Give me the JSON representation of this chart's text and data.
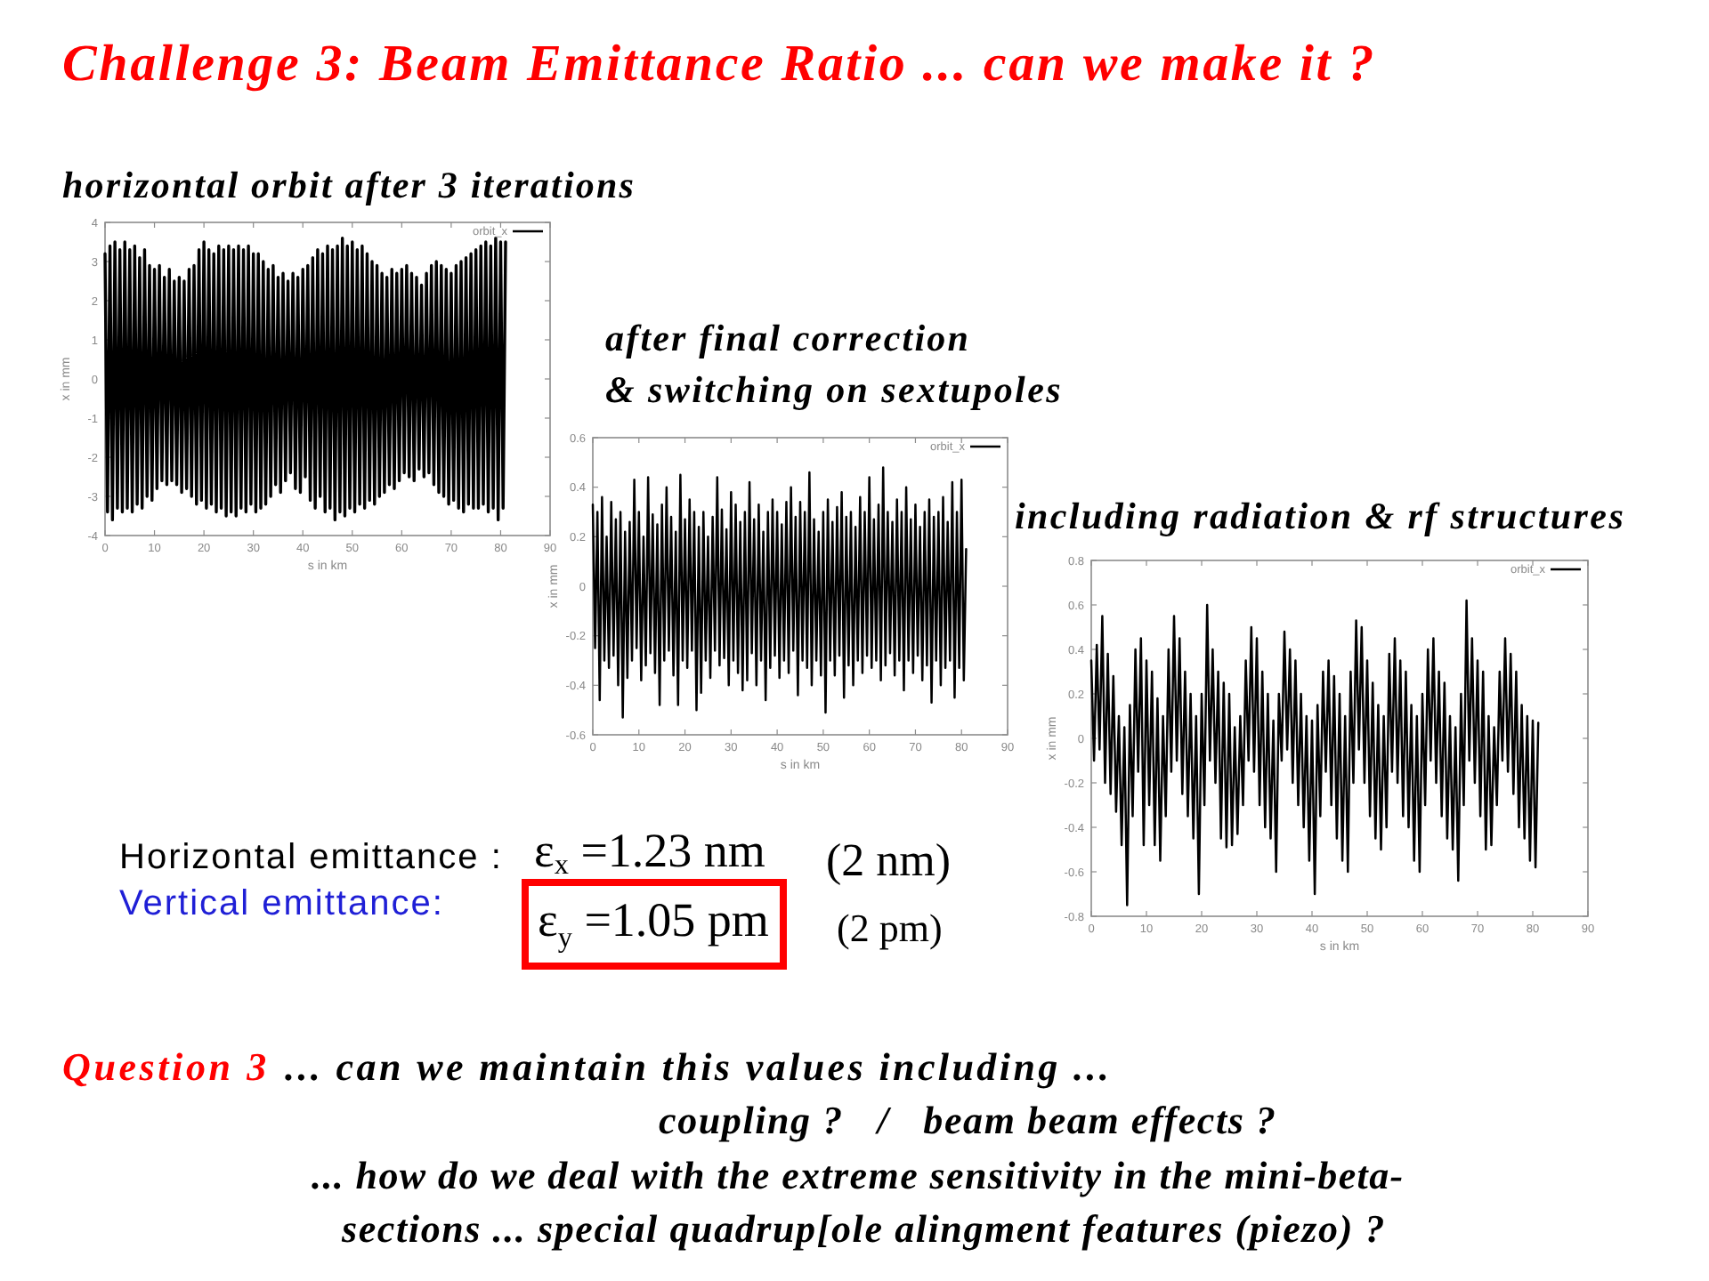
{
  "chart_data": [
    {
      "type": "line",
      "title": "Challenge 3: Beam Emittance Ratio ... can we make it ?",
      "subtitle": "horizontal orbit after 3 iterations",
      "xlabel": "s in km",
      "ylabel": "x in mm",
      "xlim": [
        0,
        90
      ],
      "ylim": [
        -4,
        4
      ],
      "xticks": [
        0,
        10,
        20,
        30,
        40,
        50,
        60,
        70,
        80,
        90
      ],
      "yticks": [
        -4,
        -3,
        -2,
        -1,
        0,
        1,
        2,
        3,
        4
      ],
      "legend": "top right",
      "x": [
        0,
        0.5,
        1,
        1.5,
        2,
        2.5,
        3,
        3.5,
        4,
        4.5,
        5,
        5.5,
        6,
        6.5,
        7,
        7.5,
        8,
        8.5,
        9,
        9.5,
        10,
        10.5,
        11,
        11.5,
        12,
        12.5,
        13,
        13.5,
        14,
        14.5,
        15,
        15.5,
        16,
        16.5,
        17,
        17.5,
        18,
        18.5,
        19,
        19.5,
        20,
        20.5,
        21,
        21.5,
        22,
        22.5,
        23,
        23.5,
        24,
        24.5,
        25,
        25.5,
        26,
        26.5,
        27,
        27.5,
        28,
        28.5,
        29,
        29.5,
        30,
        30.5,
        31,
        31.5,
        32,
        32.5,
        33,
        33.5,
        34,
        34.5,
        35,
        35.5,
        36,
        36.5,
        37,
        37.5,
        38,
        38.5,
        39,
        39.5,
        40,
        40.5,
        41,
        41.5,
        42,
        42.5,
        43,
        43.5,
        44,
        44.5,
        45,
        45.5,
        46,
        46.5,
        47,
        47.5,
        48,
        48.5,
        49,
        49.5,
        50,
        50.5,
        51,
        51.5,
        52,
        52.5,
        53,
        53.5,
        54,
        54.5,
        55,
        55.5,
        56,
        56.5,
        57,
        57.5,
        58,
        58.5,
        59,
        59.5,
        60,
        60.5,
        61,
        61.5,
        62,
        62.5,
        63,
        63.5,
        64,
        64.5,
        65,
        65.5,
        66,
        66.5,
        67,
        67.5,
        68,
        68.5,
        69,
        69.5,
        70,
        70.5,
        71,
        71.5,
        72,
        72.5,
        73,
        73.5,
        74,
        74.5,
        75,
        75.5,
        76,
        76.5,
        77,
        77.5,
        78,
        78.5,
        79,
        79.5,
        80,
        80.5,
        81
      ],
      "series": [
        {
          "name": "orbit_x",
          "color": "#000000",
          "values": [
            3.2,
            -3.4,
            3.4,
            -3.6,
            3.5,
            -3.3,
            3.3,
            -3.4,
            3.5,
            -3.3,
            3.3,
            -3.4,
            3.4,
            -3.2,
            3.1,
            -3.3,
            3.3,
            -3.0,
            2.9,
            -3.1,
            2.8,
            -2.8,
            2.9,
            -2.6,
            2.6,
            -2.7,
            2.8,
            -2.6,
            2.5,
            -2.7,
            2.6,
            -2.9,
            2.5,
            -2.8,
            2.8,
            -3.0,
            2.9,
            -3.2,
            3.3,
            -3.1,
            3.5,
            -3.3,
            3.3,
            -3.2,
            3.2,
            -3.4,
            3.4,
            -3.3,
            3.3,
            -3.5,
            3.4,
            -3.4,
            3.3,
            -3.5,
            3.4,
            -3.3,
            3.3,
            -3.4,
            3.4,
            -3.2,
            3.2,
            -3.4,
            3.2,
            -3.3,
            3.0,
            -3.2,
            2.8,
            -3.0,
            2.9,
            -2.7,
            2.6,
            -2.9,
            2.7,
            -2.6,
            2.5,
            -2.4,
            2.7,
            -2.8,
            2.6,
            -2.9,
            2.8,
            -2.5,
            2.9,
            -3.1,
            3.1,
            -3.3,
            3.3,
            -3.0,
            3.2,
            -3.4,
            3.4,
            -3.3,
            3.3,
            -3.6,
            3.4,
            -3.4,
            3.6,
            -3.5,
            3.4,
            -3.3,
            3.5,
            -3.4,
            3.3,
            -3.2,
            3.4,
            -3.3,
            3.2,
            -3.1,
            3.0,
            -3.2,
            2.9,
            -3.0,
            2.7,
            -2.9,
            2.6,
            -2.7,
            2.8,
            -2.8,
            2.7,
            -2.6,
            2.8,
            -2.4,
            2.9,
            -2.5,
            2.7,
            -2.6,
            2.6,
            -2.3,
            2.4,
            -2.5,
            2.7,
            -2.4,
            2.9,
            -2.7,
            3.0,
            -2.9,
            2.9,
            -3.0,
            2.8,
            -3.2,
            2.7,
            -3.1,
            2.9,
            -3.3,
            3.0,
            -3.4,
            3.1,
            -3.2,
            3.2,
            -3.3,
            3.3,
            -3.3,
            3.4,
            -3.2,
            3.5,
            -3.4,
            3.4,
            -3.3,
            3.6,
            -3.6,
            3.5,
            -3.3,
            3.5
          ]
        }
      ]
    },
    {
      "type": "line",
      "title": "after final correction",
      "subtitle": "& switching on sextupoles",
      "xlabel": "s in km",
      "ylabel": "x in mm",
      "xlim": [
        0,
        90
      ],
      "ylim": [
        -0.6,
        0.6
      ],
      "xticks": [
        0,
        10,
        20,
        30,
        40,
        50,
        60,
        70,
        80,
        90
      ],
      "yticks": [
        -0.6,
        -0.4,
        -0.2,
        0,
        0.2,
        0.4,
        0.6
      ],
      "legend": "top right",
      "x": [
        0,
        0.5,
        1,
        1.5,
        2,
        2.5,
        3,
        3.5,
        4,
        4.5,
        5,
        5.5,
        6,
        6.5,
        7,
        7.5,
        8,
        8.5,
        9,
        9.5,
        10,
        10.5,
        11,
        11.5,
        12,
        12.5,
        13,
        13.5,
        14,
        14.5,
        15,
        15.5,
        16,
        16.5,
        17,
        17.5,
        18,
        18.5,
        19,
        19.5,
        20,
        20.5,
        21,
        21.5,
        22,
        22.5,
        23,
        23.5,
        24,
        24.5,
        25,
        25.5,
        26,
        26.5,
        27,
        27.5,
        28,
        28.5,
        29,
        29.5,
        30,
        30.5,
        31,
        31.5,
        32,
        32.5,
        33,
        33.5,
        34,
        34.5,
        35,
        35.5,
        36,
        36.5,
        37,
        37.5,
        38,
        38.5,
        39,
        39.5,
        40,
        40.5,
        41,
        41.5,
        42,
        42.5,
        43,
        43.5,
        44,
        44.5,
        45,
        45.5,
        46,
        46.5,
        47,
        47.5,
        48,
        48.5,
        49,
        49.5,
        50,
        50.5,
        51,
        51.5,
        52,
        52.5,
        53,
        53.5,
        54,
        54.5,
        55,
        55.5,
        56,
        56.5,
        57,
        57.5,
        58,
        58.5,
        59,
        59.5,
        60,
        60.5,
        61,
        61.5,
        62,
        62.5,
        63,
        63.5,
        64,
        64.5,
        65,
        65.5,
        66,
        66.5,
        67,
        67.5,
        68,
        68.5,
        69,
        69.5,
        70,
        70.5,
        71,
        71.5,
        72,
        72.5,
        73,
        73.5,
        74,
        74.5,
        75,
        75.5,
        76,
        76.5,
        77,
        77.5,
        78,
        78.5,
        79,
        79.5,
        80,
        80.5,
        81
      ],
      "series": [
        {
          "name": "orbit_x",
          "color": "#000000",
          "values": [
            0.33,
            -0.25,
            0.3,
            -0.46,
            0.36,
            -0.3,
            0.2,
            -0.33,
            0.34,
            -0.28,
            0.27,
            -0.4,
            0.3,
            -0.53,
            0.22,
            -0.37,
            0.26,
            -0.3,
            0.43,
            -0.25,
            0.3,
            -0.38,
            0.2,
            -0.32,
            0.44,
            -0.27,
            0.29,
            -0.35,
            0.25,
            -0.48,
            0.33,
            -0.3,
            0.4,
            -0.26,
            0.28,
            -0.36,
            0.22,
            -0.48,
            0.45,
            -0.3,
            0.27,
            -0.33,
            0.35,
            -0.26,
            0.3,
            -0.5,
            0.24,
            -0.43,
            0.3,
            -0.3,
            0.2,
            -0.37,
            0.28,
            -0.26,
            0.44,
            -0.32,
            0.31,
            -0.29,
            0.23,
            -0.4,
            0.38,
            -0.3,
            0.33,
            -0.35,
            0.26,
            -0.42,
            0.3,
            -0.38,
            0.42,
            -0.27,
            0.27,
            -0.4,
            0.33,
            -0.3,
            0.22,
            -0.46,
            0.3,
            -0.33,
            0.35,
            -0.28,
            0.3,
            -0.37,
            0.25,
            -0.3,
            0.34,
            -0.35,
            0.4,
            -0.26,
            0.28,
            -0.44,
            0.34,
            -0.3,
            0.3,
            -0.33,
            0.46,
            -0.4,
            0.27,
            -0.3,
            0.22,
            -0.36,
            0.3,
            -0.51,
            0.35,
            -0.3,
            0.26,
            -0.36,
            0.32,
            -0.28,
            0.38,
            -0.45,
            0.28,
            -0.32,
            0.3,
            -0.4,
            0.24,
            -0.3,
            0.36,
            -0.35,
            0.3,
            -0.28,
            0.44,
            -0.33,
            0.27,
            -0.3,
            0.33,
            -0.38,
            0.48,
            -0.32,
            0.3,
            -0.27,
            0.26,
            -0.36,
            0.35,
            -0.3,
            0.3,
            -0.42,
            0.4,
            -0.3,
            0.27,
            -0.35,
            0.33,
            -0.28,
            0.24,
            -0.38,
            0.3,
            -0.32,
            0.35,
            -0.47,
            0.28,
            -0.3,
            0.3,
            -0.4,
            0.36,
            -0.33,
            0.26,
            -0.3,
            0.42,
            -0.45,
            0.3,
            -0.33,
            0.43,
            -0.38,
            0.15
          ]
        }
      ]
    },
    {
      "type": "line",
      "title": "including radiation & rf structures",
      "xlabel": "s in km",
      "ylabel": "x in mm",
      "xlim": [
        0,
        90
      ],
      "ylim": [
        -0.8,
        0.8
      ],
      "xticks": [
        0,
        10,
        20,
        30,
        40,
        50,
        60,
        70,
        80,
        90
      ],
      "yticks": [
        -0.8,
        -0.6,
        -0.4,
        -0.2,
        0,
        0.2,
        0.4,
        0.6,
        0.8
      ],
      "legend": "top right",
      "x": [
        0,
        0.5,
        1,
        1.5,
        2,
        2.5,
        3,
        3.5,
        4,
        4.5,
        5,
        5.5,
        6,
        6.5,
        7,
        7.5,
        8,
        8.5,
        9,
        9.5,
        10,
        10.5,
        11,
        11.5,
        12,
        12.5,
        13,
        13.5,
        14,
        14.5,
        15,
        15.5,
        16,
        16.5,
        17,
        17.5,
        18,
        18.5,
        19,
        19.5,
        20,
        20.5,
        21,
        21.5,
        22,
        22.5,
        23,
        23.5,
        24,
        24.5,
        25,
        25.5,
        26,
        26.5,
        27,
        27.5,
        28,
        28.5,
        29,
        29.5,
        30,
        30.5,
        31,
        31.5,
        32,
        32.5,
        33,
        33.5,
        34,
        34.5,
        35,
        35.5,
        36,
        36.5,
        37,
        37.5,
        38,
        38.5,
        39,
        39.5,
        40,
        40.5,
        41,
        41.5,
        42,
        42.5,
        43,
        43.5,
        44,
        44.5,
        45,
        45.5,
        46,
        46.5,
        47,
        47.5,
        48,
        48.5,
        49,
        49.5,
        50,
        50.5,
        51,
        51.5,
        52,
        52.5,
        53,
        53.5,
        54,
        54.5,
        55,
        55.5,
        56,
        56.5,
        57,
        57.5,
        58,
        58.5,
        59,
        59.5,
        60,
        60.5,
        61,
        61.5,
        62,
        62.5,
        63,
        63.5,
        64,
        64.5,
        65,
        65.5,
        66,
        66.5,
        67,
        67.5,
        68,
        68.5,
        69,
        69.5,
        70,
        70.5,
        71,
        71.5,
        72,
        72.5,
        73,
        73.5,
        74,
        74.5,
        75,
        75.5,
        76,
        76.5,
        77,
        77.5,
        78,
        78.5,
        79,
        79.5,
        80,
        80.5,
        81
      ],
      "series": [
        {
          "name": "orbit_x",
          "color": "#000000",
          "values": [
            0.35,
            -0.1,
            0.42,
            -0.05,
            0.55,
            -0.2,
            0.38,
            -0.25,
            0.28,
            -0.33,
            0.1,
            -0.48,
            0.05,
            -0.75,
            0.15,
            -0.35,
            0.4,
            -0.15,
            0.45,
            -0.48,
            0.35,
            -0.3,
            0.3,
            -0.48,
            0.18,
            -0.55,
            0.1,
            -0.35,
            0.4,
            -0.15,
            0.55,
            -0.1,
            0.45,
            -0.25,
            0.3,
            -0.35,
            0.2,
            -0.45,
            0.1,
            -0.7,
            0.2,
            -0.3,
            0.6,
            -0.1,
            0.4,
            -0.2,
            0.3,
            -0.45,
            0.25,
            -0.49,
            0.2,
            -0.48,
            0.05,
            -0.43,
            0.1,
            -0.3,
            0.35,
            -0.1,
            0.5,
            -0.15,
            0.45,
            -0.3,
            0.3,
            -0.4,
            0.2,
            -0.45,
            0.08,
            -0.6,
            0.2,
            -0.1,
            0.48,
            -0.05,
            0.4,
            -0.2,
            0.35,
            -0.3,
            0.2,
            -0.4,
            0.1,
            -0.55,
            0.08,
            -0.7,
            0.15,
            -0.35,
            0.3,
            -0.15,
            0.35,
            -0.3,
            0.28,
            -0.45,
            0.2,
            -0.55,
            0.1,
            -0.6,
            0.3,
            -0.2,
            0.53,
            -0.05,
            0.5,
            -0.2,
            0.35,
            -0.35,
            0.25,
            -0.45,
            0.15,
            -0.5,
            0.1,
            -0.4,
            0.38,
            -0.15,
            0.45,
            -0.2,
            0.35,
            -0.35,
            0.3,
            -0.4,
            0.15,
            -0.55,
            0.1,
            -0.6,
            0.2,
            -0.3,
            0.4,
            -0.1,
            0.45,
            -0.2,
            0.3,
            -0.35,
            0.25,
            -0.45,
            0.1,
            -0.5,
            0.05,
            -0.64,
            0.2,
            -0.3,
            0.62,
            -0.1,
            0.45,
            -0.2,
            0.35,
            -0.35,
            0.3,
            -0.5,
            0.1,
            -0.48,
            0.05,
            -0.3,
            0.3,
            -0.1,
            0.45,
            -0.15,
            0.38,
            -0.25,
            0.3,
            -0.4,
            0.15,
            -0.45,
            0.1,
            -0.55,
            0.08,
            -0.58,
            0.07
          ]
        }
      ]
    },
    {
      "type": "other",
      "annotations": [
        "Horizontal emittance :",
        "ε$_{x}$ =1.23 nm",
        "(2 nm)",
        "Vertical emittance:",
        "ε$_{y}$ =1.05 pm",
        "(2 pm)",
        "Question 3",
        "... can we maintain this values including ...",
        "coupling ?   /   beam beam effects ?",
        "... how do we deal with the extreme sensitivity in the mini-beta-",
        "sections ... special quadrup[ole alingment features (piezo) ?"
      ]
    }
  ]
}
